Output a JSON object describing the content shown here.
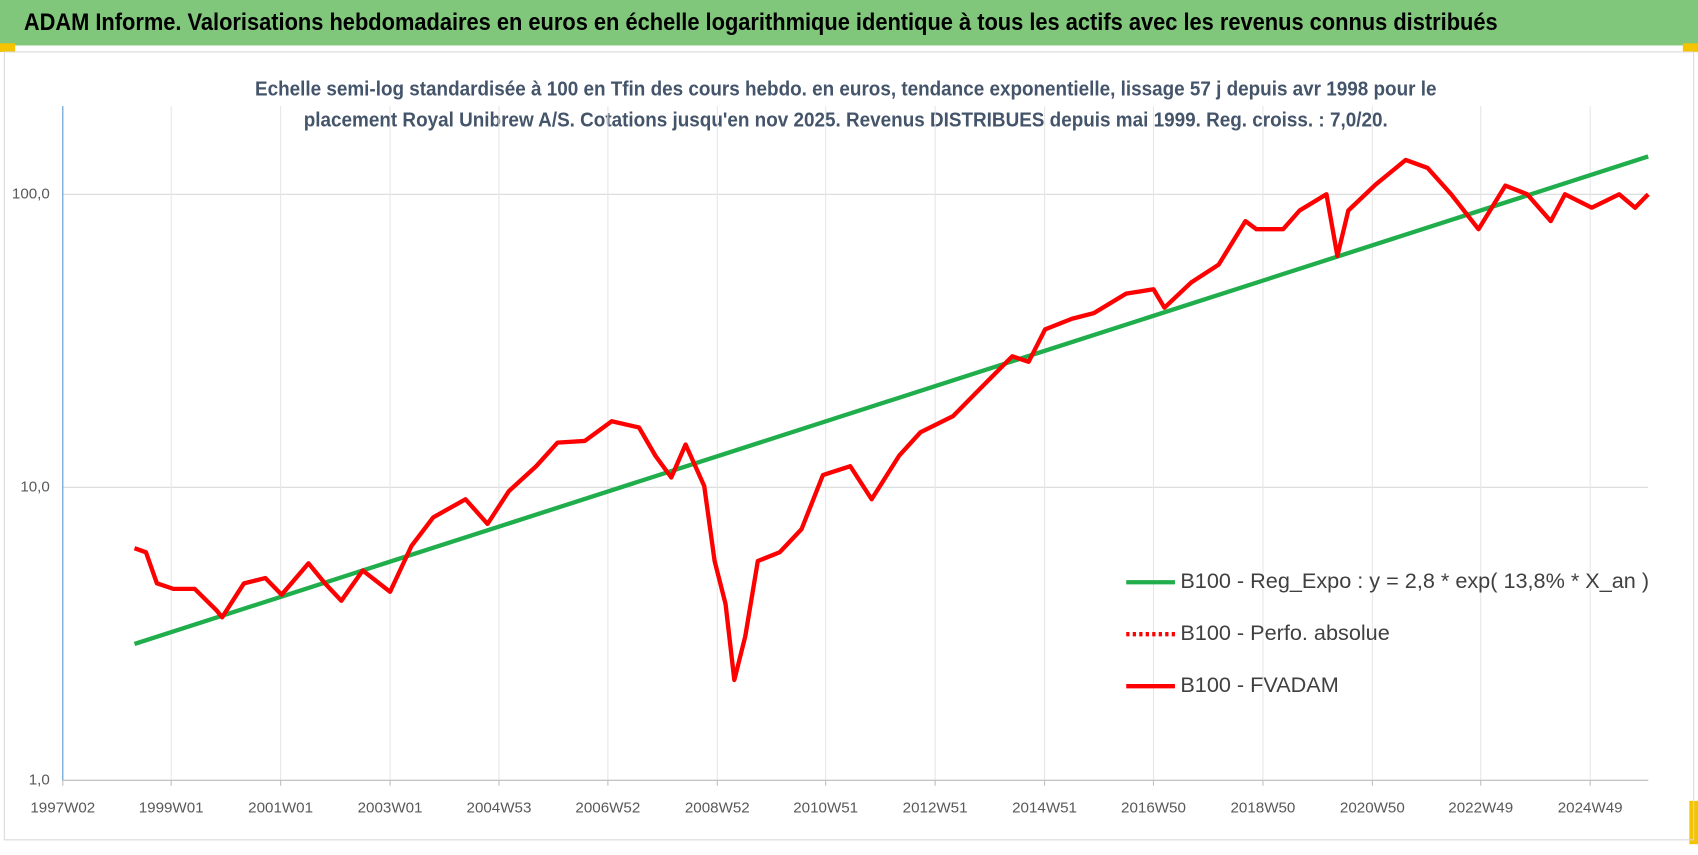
{
  "header": {
    "title": "ADAM Informe. Valorisations hebdomadaires en euros en échelle logarithmique identique à tous les actifs avec les revenus connus distribués"
  },
  "chart_data": {
    "type": "line",
    "title": [
      "Echelle semi-log standardisée à 100 en Tfin des cours hebdo. en euros, tendance exponentielle, lissage 57 j depuis avr 1998 pour le",
      "placement Royal Unibrew A/S. Cotations jusqu'en nov 2025. Revenus DISTRIBUES depuis mai 1999. Reg. croiss. : 7,0/20."
    ],
    "ylog": true,
    "grid": true,
    "legend": "right",
    "xlim": [
      1997.02,
      2025.99
    ],
    "xticks": [
      {
        "value": 1997.02,
        "label": "1997W02"
      },
      {
        "value": 1999.0,
        "label": "1999W01"
      },
      {
        "value": 2001.0,
        "label": "2001W01"
      },
      {
        "value": 2003.0,
        "label": "2003W01"
      },
      {
        "value": 2004.99,
        "label": "2004W53"
      },
      {
        "value": 2006.98,
        "label": "2006W52"
      },
      {
        "value": 2008.98,
        "label": "2008W52"
      },
      {
        "value": 2010.96,
        "label": "2010W51"
      },
      {
        "value": 2012.96,
        "label": "2012W51"
      },
      {
        "value": 2014.96,
        "label": "2014W51"
      },
      {
        "value": 2016.95,
        "label": "2016W50"
      },
      {
        "value": 2018.95,
        "label": "2018W50"
      },
      {
        "value": 2020.95,
        "label": "2020W50"
      },
      {
        "value": 2022.93,
        "label": "2022W49"
      },
      {
        "value": 2024.93,
        "label": "2024W49"
      }
    ],
    "ylim": [
      1,
      200
    ],
    "yticks": [
      {
        "value": 1,
        "label": "1,0"
      },
      {
        "value": 10,
        "label": "10,0"
      },
      {
        "value": 100,
        "label": "100,0"
      }
    ],
    "series": [
      {
        "name": "B100 - Reg_Expo : y = 2,8 * exp( 13,8% *  X_an )",
        "color": "#1fae4b",
        "line_style": "solid",
        "x": [
          1998.33,
          2025.99
        ],
        "values": [
          2.92,
          134.6
        ]
      },
      {
        "name": "B100 - Perfo. absolue",
        "color": "#ff0000",
        "line_style": "dotted",
        "x": [],
        "values": []
      },
      {
        "name": "B100 - FVADAM",
        "color": "#ff0000",
        "line_style": "solid",
        "x": [
          1998.33,
          1998.54,
          1998.74,
          1999.04,
          1999.43,
          1999.83,
          1999.93,
          2000.33,
          2000.72,
          2001.02,
          2001.51,
          2001.81,
          2002.11,
          2002.5,
          2003.0,
          2003.39,
          2003.79,
          2004.38,
          2004.78,
          2005.17,
          2005.67,
          2006.06,
          2006.56,
          2007.05,
          2007.55,
          2007.85,
          2008.14,
          2008.4,
          2008.74,
          2008.93,
          2009.13,
          2009.29,
          2009.49,
          2009.72,
          2010.12,
          2010.52,
          2010.91,
          2011.41,
          2011.8,
          2012.3,
          2012.69,
          2013.29,
          2013.78,
          2014.37,
          2014.67,
          2014.97,
          2015.46,
          2015.86,
          2016.45,
          2016.95,
          2017.15,
          2017.64,
          2018.14,
          2018.63,
          2018.83,
          2019.32,
          2019.62,
          2020.11,
          2020.31,
          2020.51,
          2021.01,
          2021.56,
          2021.96,
          2022.39,
          2022.89,
          2023.38,
          2023.78,
          2024.21,
          2024.47,
          2024.96,
          2025.46,
          2025.75,
          2025.99
        ],
        "values": [
          6.2,
          6.0,
          4.7,
          4.5,
          4.5,
          3.8,
          3.6,
          4.7,
          4.9,
          4.3,
          5.5,
          4.7,
          4.1,
          5.2,
          4.4,
          6.3,
          7.9,
          9.1,
          7.5,
          9.7,
          11.8,
          14.2,
          14.4,
          16.8,
          16.0,
          12.8,
          10.8,
          14.0,
          10.1,
          5.6,
          4.0,
          2.2,
          3.1,
          5.6,
          6.0,
          7.2,
          11.0,
          11.8,
          9.1,
          12.8,
          15.4,
          17.5,
          21.7,
          28.0,
          26.8,
          34.6,
          37.6,
          39.3,
          45.8,
          47.4,
          41.0,
          50.0,
          57.5,
          81.0,
          76.0,
          76.0,
          88.0,
          100.0,
          61.6,
          88.0,
          108.0,
          131.0,
          123.0,
          100.0,
          76.0,
          107.0,
          100.0,
          81.0,
          100.0,
          90.0,
          100.0,
          90.0,
          100.0
        ]
      }
    ]
  }
}
